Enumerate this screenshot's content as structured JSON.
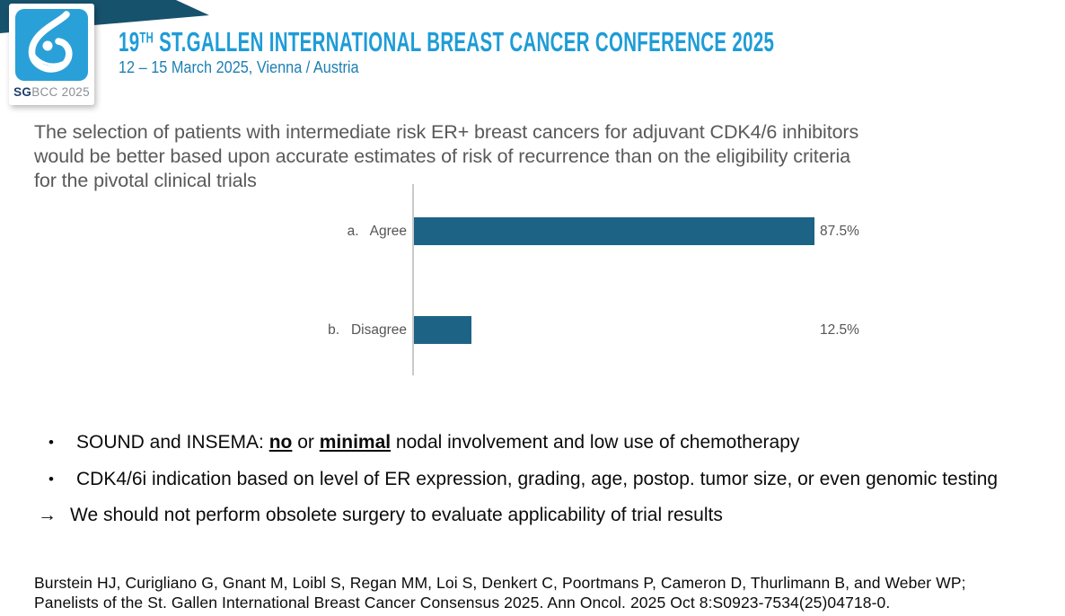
{
  "header": {
    "ribbon_color": "#17526d",
    "logo": {
      "icon": "sgbcc-breast-symbol-icon",
      "square_color": "#2aa0d8",
      "label_strong": "SG",
      "label_rest": "BCC 2025"
    },
    "title_num": "19",
    "title_sup": "TH",
    "title_rest": " ST.GALLEN INTERNATIONAL BREAST CANCER CONFERENCE 2025",
    "title_color": "#1e9cd7",
    "subtitle": "12 – 15 March 2025, Vienna / Austria",
    "subtitle_color": "#1c7fb3"
  },
  "statement": {
    "color": "#595959",
    "lines": [
      "The selection of patients with intermediate risk ER+ breast cancers for adjuvant CDK4/6 inhibitors",
      "would be better based upon accurate estimates of risk of recurrence than on the eligibility criteria",
      "for the pivotal clinical trials"
    ]
  },
  "chart_data": {
    "type": "bar",
    "orientation": "horizontal",
    "title": "",
    "categories": [
      "a.   Agree",
      "b.   Disagree"
    ],
    "values": [
      87.5,
      12.5
    ],
    "value_labels": [
      "87.5%",
      "12.5%"
    ],
    "xlim": [
      0,
      100
    ],
    "bar_color": "#1d6385",
    "axis_color": "#c9c9c9",
    "grid": false,
    "legend": "none"
  },
  "bullets_section": {
    "marker": "•",
    "items": [
      {
        "segments": [
          {
            "t": "SOUND and INSEMA: "
          },
          {
            "t": "no",
            "b": true,
            "u": true
          },
          {
            "t": " or "
          },
          {
            "t": "minimal",
            "b": true,
            "u": true
          },
          {
            "t": " nodal involvement and low use of chemotherapy"
          }
        ]
      },
      {
        "segments": [
          {
            "t": "CDK4/6i indication based on level of ER expression, grading, age, postop. tumor size, or even genomic testing"
          }
        ]
      }
    ],
    "arrow_item": {
      "marker": "→",
      "segments": [
        {
          "t": "We should not perform obsolete surgery to evaluate applicability of trial results"
        }
      ]
    }
  },
  "citation": {
    "lines": [
      "Burstein HJ, Curigliano G, Gnant M, Loibl S, Regan MM, Loi S, Denkert C, Poortmans P, Cameron D, Thurlimann B, and Weber WP;",
      "Panelists of the St. Gallen International Breast Cancer Consensus 2025. Ann Oncol. 2025 Oct 8:S0923-7534(25)04718-0."
    ]
  }
}
